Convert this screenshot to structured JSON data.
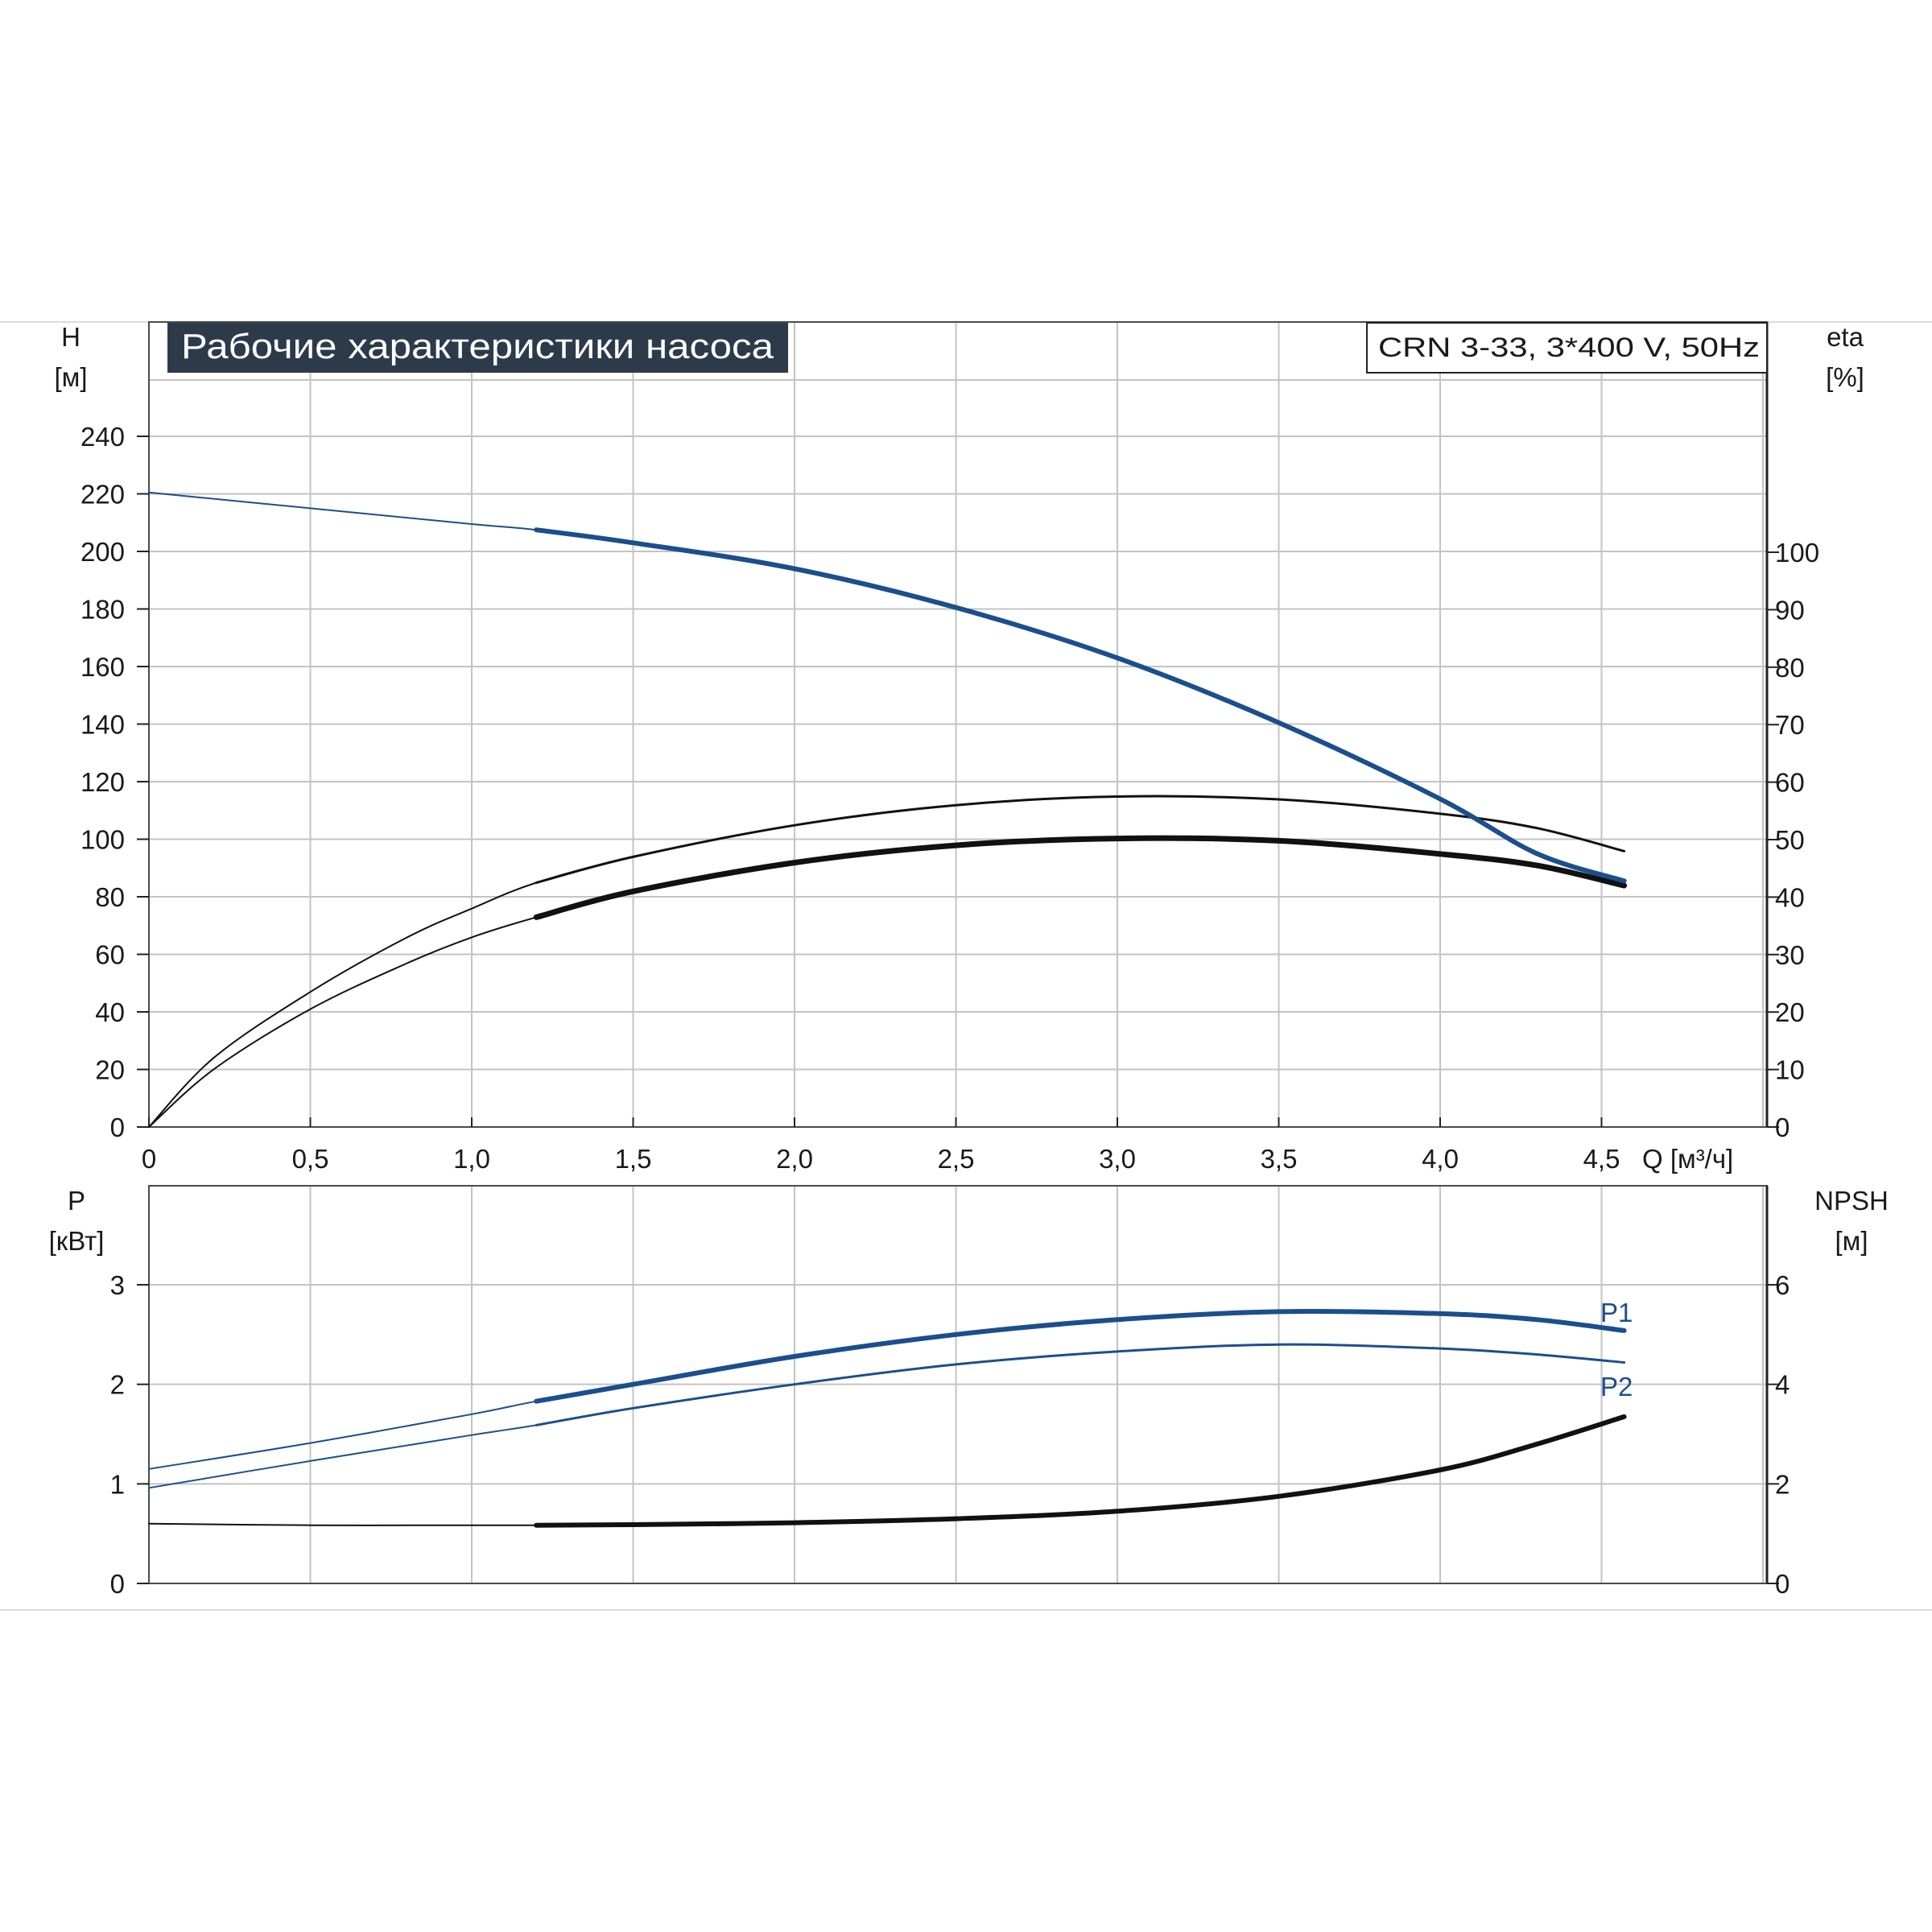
{
  "title": "Рабочие характеристики насоса",
  "model_label": "CRN 3-33, 3*400 V, 50Hz",
  "colors": {
    "blue": "#1b4f8c",
    "black": "#111111",
    "title_bg": "#2d3a4a",
    "grid": "#c3c3c3"
  },
  "chart_data": [
    {
      "type": "line",
      "title": "Рабочие характеристики насоса",
      "xlabel": "Q [м³/ч]",
      "x_ticks": [
        "0",
        "0,5",
        "1,0",
        "1,5",
        "2,0",
        "2,5",
        "3,0",
        "3,5",
        "4,0",
        "4,5"
      ],
      "xlim": [
        0,
        5
      ],
      "y_left": {
        "label": "H",
        "unit": "[м]",
        "ticks": [
          "0",
          "20",
          "40",
          "60",
          "80",
          "100",
          "120",
          "140",
          "160",
          "180",
          "200",
          "220",
          "240"
        ],
        "ylim": [
          0,
          260
        ]
      },
      "y_right": {
        "label": "eta",
        "unit": "[%]",
        "ticks": [
          "0",
          "10",
          "20",
          "30",
          "40",
          "50",
          "60",
          "70",
          "80",
          "90",
          "100"
        ],
        "ylim": [
          0,
          130
        ]
      },
      "grid": true,
      "series": [
        {
          "axis": "left",
          "color": "#1b4f8c",
          "x": [
            0,
            0.5,
            1.0,
            1.2,
            1.5,
            2.0,
            2.5,
            3.0,
            3.5,
            4.0,
            4.3,
            4.57
          ],
          "y": [
            220.5,
            215,
            209.5,
            207.5,
            203,
            194,
            180.5,
            163,
            140.5,
            114,
            95,
            85.5
          ]
        },
        {
          "axis": "right",
          "x": [
            0,
            0.2,
            0.5,
            0.8,
            1.0,
            1.2,
            1.5,
            2.0,
            2.5,
            3.0,
            3.5,
            4.0,
            4.3,
            4.57
          ],
          "y": [
            0,
            12,
            23.5,
            33,
            38,
            42.5,
            47,
            52.5,
            56,
            57.5,
            57,
            54.5,
            52,
            48
          ]
        },
        {
          "axis": "right",
          "x": [
            0,
            0.2,
            0.5,
            0.8,
            1.0,
            1.2,
            1.5,
            2.0,
            2.5,
            3.0,
            3.5,
            4.0,
            4.3,
            4.57
          ],
          "y": [
            0,
            10,
            20.5,
            28.5,
            33,
            36.5,
            41,
            46,
            49,
            50.2,
            49.8,
            47.5,
            45.5,
            42
          ]
        }
      ]
    },
    {
      "type": "line",
      "xlim": [
        0,
        5
      ],
      "y_left": {
        "label": "P",
        "unit": "[кВт]",
        "ticks": [
          "0",
          "1",
          "2",
          "3"
        ],
        "ylim": [
          0,
          3.5
        ]
      },
      "y_right": {
        "label": "NPSH",
        "unit": "[м]",
        "ticks": [
          "0",
          "2",
          "4",
          "6"
        ],
        "ylim": [
          0,
          7
        ]
      },
      "grid": true,
      "series": [
        {
          "name": "P1",
          "axis": "left",
          "color": "#1b4f8c",
          "x": [
            0,
            0.5,
            1.0,
            1.2,
            1.5,
            2.0,
            2.5,
            3.0,
            3.5,
            4.0,
            4.3,
            4.57
          ],
          "y": [
            1.15,
            1.41,
            1.7,
            1.83,
            2.0,
            2.28,
            2.5,
            2.65,
            2.73,
            2.71,
            2.65,
            2.54
          ]
        },
        {
          "name": "P2",
          "axis": "left",
          "color": "#1b4f8c",
          "x": [
            0,
            0.5,
            1.0,
            1.2,
            1.5,
            2.0,
            2.5,
            3.0,
            3.5,
            4.0,
            4.3,
            4.57
          ],
          "y": [
            0.96,
            1.23,
            1.49,
            1.59,
            1.76,
            2.0,
            2.2,
            2.33,
            2.4,
            2.36,
            2.3,
            2.22
          ]
        },
        {
          "axis": "right",
          "color": "#111111",
          "x": [
            0,
            0.5,
            1.0,
            1.2,
            1.5,
            2.0,
            2.5,
            3.0,
            3.5,
            4.0,
            4.3,
            4.57
          ],
          "y": [
            1.2,
            1.17,
            1.17,
            1.17,
            1.18,
            1.22,
            1.3,
            1.45,
            1.75,
            2.28,
            2.8,
            3.35
          ]
        }
      ]
    }
  ]
}
